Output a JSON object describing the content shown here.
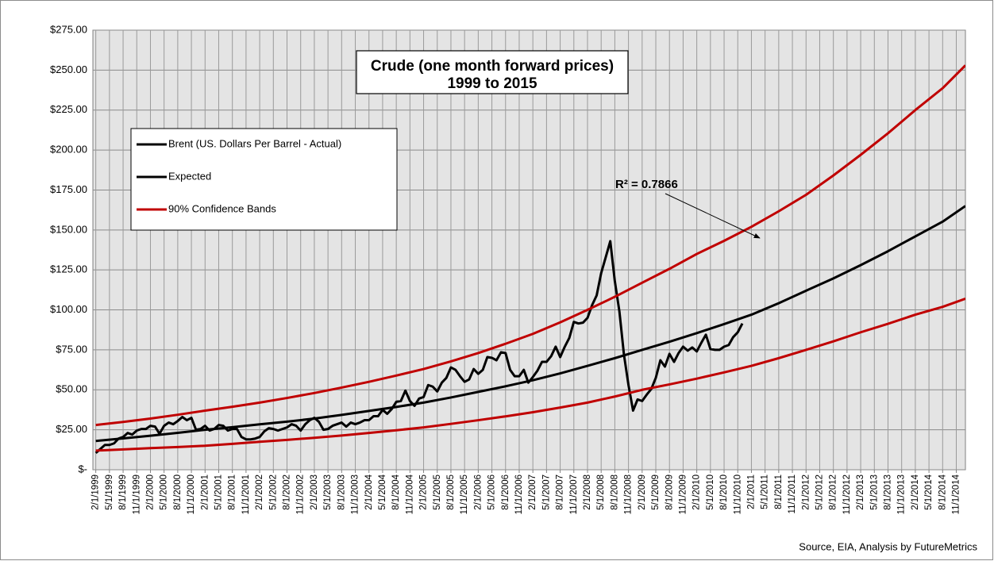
{
  "chart_data": {
    "type": "line",
    "title": "Crude (one month forward prices)",
    "subtitle": "1999 to 2015",
    "annotation": "R² = 0.7866",
    "source": "Source, EIA, Analysis by FutureMetrics",
    "grid": true,
    "legend": "upper left",
    "xlim": [
      1999.03,
      2015.0
    ],
    "ylim": [
      0,
      275
    ],
    "yticks": [
      {
        "value": 0,
        "label": "$-"
      },
      {
        "value": 25,
        "label": "$25.00"
      },
      {
        "value": 50,
        "label": "$50.00"
      },
      {
        "value": 75,
        "label": "$75.00"
      },
      {
        "value": 100,
        "label": "$100.00"
      },
      {
        "value": 125,
        "label": "$125.00"
      },
      {
        "value": 150,
        "label": "$150.00"
      },
      {
        "value": 175,
        "label": "$175.00"
      },
      {
        "value": 200,
        "label": "$200.00"
      },
      {
        "value": 225,
        "label": "$225.00"
      },
      {
        "value": 250,
        "label": "$250.00"
      },
      {
        "value": 275,
        "label": "$275.00"
      }
    ],
    "xticks": [
      {
        "value": 1999.083,
        "label": "2/1/1999"
      },
      {
        "value": 1999.333,
        "label": "5/1/1999"
      },
      {
        "value": 1999.583,
        "label": "8/1/1999"
      },
      {
        "value": 1999.833,
        "label": "11/1/1999"
      },
      {
        "value": 2000.083,
        "label": "2/1/2000"
      },
      {
        "value": 2000.333,
        "label": "5/1/2000"
      },
      {
        "value": 2000.583,
        "label": "8/1/2000"
      },
      {
        "value": 2000.833,
        "label": "11/1/2000"
      },
      {
        "value": 2001.083,
        "label": "2/1/2001"
      },
      {
        "value": 2001.333,
        "label": "5/1/2001"
      },
      {
        "value": 2001.583,
        "label": "8/1/2001"
      },
      {
        "value": 2001.833,
        "label": "11/1/2001"
      },
      {
        "value": 2002.083,
        "label": "2/1/2002"
      },
      {
        "value": 2002.333,
        "label": "5/1/2002"
      },
      {
        "value": 2002.583,
        "label": "8/1/2002"
      },
      {
        "value": 2002.833,
        "label": "11/1/2002"
      },
      {
        "value": 2003.083,
        "label": "2/1/2003"
      },
      {
        "value": 2003.333,
        "label": "5/1/2003"
      },
      {
        "value": 2003.583,
        "label": "8/1/2003"
      },
      {
        "value": 2003.833,
        "label": "11/1/2003"
      },
      {
        "value": 2004.083,
        "label": "2/1/2004"
      },
      {
        "value": 2004.333,
        "label": "5/1/2004"
      },
      {
        "value": 2004.583,
        "label": "8/1/2004"
      },
      {
        "value": 2004.833,
        "label": "11/1/2004"
      },
      {
        "value": 2005.083,
        "label": "2/1/2005"
      },
      {
        "value": 2005.333,
        "label": "5/1/2005"
      },
      {
        "value": 2005.583,
        "label": "8/1/2005"
      },
      {
        "value": 2005.833,
        "label": "11/1/2005"
      },
      {
        "value": 2006.083,
        "label": "2/1/2006"
      },
      {
        "value": 2006.333,
        "label": "5/1/2006"
      },
      {
        "value": 2006.583,
        "label": "8/1/2006"
      },
      {
        "value": 2006.833,
        "label": "11/1/2006"
      },
      {
        "value": 2007.083,
        "label": "2/1/2007"
      },
      {
        "value": 2007.333,
        "label": "5/1/2007"
      },
      {
        "value": 2007.583,
        "label": "8/1/2007"
      },
      {
        "value": 2007.833,
        "label": "11/1/2007"
      },
      {
        "value": 2008.083,
        "label": "2/1/2008"
      },
      {
        "value": 2008.333,
        "label": "5/1/2008"
      },
      {
        "value": 2008.583,
        "label": "8/1/2008"
      },
      {
        "value": 2008.833,
        "label": "11/1/2008"
      },
      {
        "value": 2009.083,
        "label": "2/1/2009"
      },
      {
        "value": 2009.333,
        "label": "5/1/2009"
      },
      {
        "value": 2009.583,
        "label": "8/1/2009"
      },
      {
        "value": 2009.833,
        "label": "11/1/2009"
      },
      {
        "value": 2010.083,
        "label": "2/1/2010"
      },
      {
        "value": 2010.333,
        "label": "5/1/2010"
      },
      {
        "value": 2010.583,
        "label": "8/1/2010"
      },
      {
        "value": 2010.833,
        "label": "11/1/2010"
      },
      {
        "value": 2011.083,
        "label": "2/1/2011"
      },
      {
        "value": 2011.333,
        "label": "5/1/2011"
      },
      {
        "value": 2011.583,
        "label": "8/1/2011"
      },
      {
        "value": 2011.833,
        "label": "11/1/2011"
      },
      {
        "value": 2012.083,
        "label": "2/1/2012"
      },
      {
        "value": 2012.333,
        "label": "5/1/2012"
      },
      {
        "value": 2012.583,
        "label": "8/1/2012"
      },
      {
        "value": 2012.833,
        "label": "11/1/2012"
      },
      {
        "value": 2013.083,
        "label": "2/1/2013"
      },
      {
        "value": 2013.333,
        "label": "5/1/2013"
      },
      {
        "value": 2013.583,
        "label": "8/1/2013"
      },
      {
        "value": 2013.833,
        "label": "11/1/2013"
      },
      {
        "value": 2014.083,
        "label": "2/1/2014"
      },
      {
        "value": 2014.333,
        "label": "5/1/2014"
      },
      {
        "value": 2014.583,
        "label": "8/1/2014"
      },
      {
        "value": 2014.833,
        "label": "11/1/2014"
      }
    ],
    "series": [
      {
        "name": "Brent (US. Dollars Per Barrel - Actual)",
        "color": "#000000",
        "x": [
          1999.083,
          1999.167,
          1999.25,
          1999.333,
          1999.417,
          1999.5,
          1999.583,
          1999.667,
          1999.75,
          1999.833,
          1999.917,
          2000,
          2000.083,
          2000.167,
          2000.25,
          2000.333,
          2000.417,
          2000.5,
          2000.583,
          2000.667,
          2000.75,
          2000.833,
          2000.917,
          2001,
          2001.083,
          2001.167,
          2001.25,
          2001.333,
          2001.417,
          2001.5,
          2001.583,
          2001.667,
          2001.75,
          2001.833,
          2001.917,
          2002,
          2002.083,
          2002.167,
          2002.25,
          2002.333,
          2002.417,
          2002.5,
          2002.583,
          2002.667,
          2002.75,
          2002.833,
          2002.917,
          2003,
          2003.083,
          2003.167,
          2003.25,
          2003.333,
          2003.417,
          2003.5,
          2003.583,
          2003.667,
          2003.75,
          2003.833,
          2003.917,
          2004,
          2004.083,
          2004.167,
          2004.25,
          2004.333,
          2004.417,
          2004.5,
          2004.583,
          2004.667,
          2004.75,
          2004.833,
          2004.917,
          2005,
          2005.083,
          2005.167,
          2005.25,
          2005.333,
          2005.417,
          2005.5,
          2005.583,
          2005.667,
          2005.75,
          2005.833,
          2005.917,
          2006,
          2006.083,
          2006.167,
          2006.25,
          2006.333,
          2006.417,
          2006.5,
          2006.583,
          2006.667,
          2006.75,
          2006.833,
          2006.917,
          2007,
          2007.083,
          2007.167,
          2007.25,
          2007.333,
          2007.417,
          2007.5,
          2007.583,
          2007.667,
          2007.75,
          2007.833,
          2007.917,
          2008,
          2008.083,
          2008.167,
          2008.25,
          2008.333,
          2008.417,
          2008.5,
          2008.583,
          2008.667,
          2008.75,
          2008.833,
          2008.917,
          2009,
          2009.083,
          2009.167,
          2009.25,
          2009.333,
          2009.417,
          2009.5,
          2009.583,
          2009.667,
          2009.75,
          2009.833,
          2009.917,
          2010,
          2010.083,
          2010.167,
          2010.25,
          2010.333,
          2010.417,
          2010.5,
          2010.583,
          2010.667,
          2010.75,
          2010.833,
          2010.917
        ],
        "values": [
          10.5,
          13,
          15.5,
          15.5,
          16.5,
          19.5,
          20.5,
          23,
          22,
          24.5,
          25.5,
          25.5,
          27.5,
          27,
          22.5,
          27.5,
          29.5,
          28.5,
          30.5,
          33,
          31,
          32.5,
          25,
          25.5,
          27.5,
          24.5,
          25.5,
          28,
          27.5,
          24.5,
          25.5,
          25.5,
          20.5,
          19,
          19,
          19.5,
          20.5,
          24,
          26,
          25.5,
          24.5,
          25.5,
          26.5,
          28.5,
          27.5,
          24.5,
          28.5,
          31,
          32.5,
          30,
          25,
          25.5,
          27.5,
          28.5,
          29.5,
          27,
          29.5,
          28.5,
          29.5,
          31,
          31,
          33.5,
          33.5,
          37.5,
          35,
          38,
          42.5,
          43,
          49.5,
          43,
          40,
          44.5,
          45.5,
          53,
          52,
          49,
          54.5,
          57.5,
          64,
          62.5,
          58.5,
          55,
          56.5,
          63,
          60,
          62.5,
          70.5,
          70,
          68.5,
          73.5,
          73,
          62.5,
          58.5,
          58.5,
          62.5,
          54.5,
          58,
          62,
          67.5,
          67.5,
          71,
          77,
          70.5,
          77,
          82.5,
          92.5,
          91.5,
          92,
          95,
          103,
          109,
          123,
          133,
          143,
          118,
          99,
          72,
          53,
          37,
          44,
          43,
          47,
          50.5,
          57.5,
          68.5,
          64.5,
          72.5,
          67.5,
          73,
          77,
          74.5,
          76.5,
          74,
          79.5,
          84.5,
          75.5,
          75,
          75,
          77,
          78,
          83,
          86,
          91.5
        ]
      },
      {
        "name": "Expected",
        "color": "#000000",
        "x": [
          1999.083,
          1999.583,
          2000.083,
          2000.583,
          2001.083,
          2001.583,
          2002.083,
          2002.583,
          2003.083,
          2003.583,
          2004.083,
          2004.583,
          2005.083,
          2005.583,
          2006.083,
          2006.583,
          2007.083,
          2007.583,
          2008.083,
          2008.583,
          2009.083,
          2009.583,
          2010.083,
          2010.583,
          2011.083,
          2011.583,
          2012.083,
          2012.583,
          2013.083,
          2013.583,
          2014.083,
          2014.583,
          2015.0
        ],
        "values": [
          18,
          19.6,
          21.3,
          23.1,
          25,
          26.6,
          28.4,
          30.1,
          32,
          34.3,
          36.8,
          39.3,
          42,
          45.2,
          48.7,
          52.2,
          56,
          60.3,
          65,
          69.8,
          75,
          80.1,
          85.5,
          91.1,
          97,
          104.2,
          112,
          119.7,
          128,
          136.7,
          146,
          155.2,
          165
        ]
      },
      {
        "name": "90% Confidence Bands",
        "color": "#c00000",
        "x": [
          1999.083,
          1999.583,
          2000.083,
          2000.583,
          2001.083,
          2001.583,
          2002.083,
          2002.583,
          2003.083,
          2003.583,
          2004.083,
          2004.583,
          2005.083,
          2005.583,
          2006.083,
          2006.583,
          2007.083,
          2007.583,
          2008.083,
          2008.583,
          2009.083,
          2009.583,
          2010.083,
          2010.583,
          2011.083,
          2011.583,
          2012.083,
          2012.583,
          2013.083,
          2013.583,
          2014.083,
          2014.583,
          2015.0
        ],
        "values": [
          28,
          29.9,
          32,
          34.4,
          37,
          39.4,
          42,
          44.9,
          48,
          51.4,
          55,
          58.9,
          63,
          67.8,
          73,
          78.8,
          85,
          92.2,
          100,
          108.2,
          117,
          125.7,
          135,
          143.2,
          152,
          161.7,
          172,
          184.1,
          197,
          210.5,
          225,
          238.7,
          253
        ]
      },
      {
        "color": "#c00000",
        "x": [
          1999.083,
          1999.583,
          2000.083,
          2000.583,
          2001.083,
          2001.583,
          2002.083,
          2002.583,
          2003.083,
          2003.583,
          2004.083,
          2004.583,
          2005.083,
          2005.583,
          2006.083,
          2006.583,
          2007.083,
          2007.583,
          2008.083,
          2008.583,
          2009.083,
          2009.583,
          2010.083,
          2010.583,
          2011.083,
          2011.583,
          2012.083,
          2012.583,
          2013.083,
          2013.583,
          2014.083,
          2014.583,
          2015.0
        ],
        "values": [
          12,
          12.7,
          13.5,
          14.2,
          15,
          16.2,
          17.5,
          18.7,
          20,
          21.4,
          23,
          24.7,
          26.5,
          28.7,
          31,
          33.4,
          36,
          38.9,
          42,
          45.8,
          50,
          53.4,
          57,
          60.9,
          65,
          69.8,
          75,
          80.3,
          86,
          91.3,
          97,
          101.9,
          107
        ]
      }
    ]
  }
}
